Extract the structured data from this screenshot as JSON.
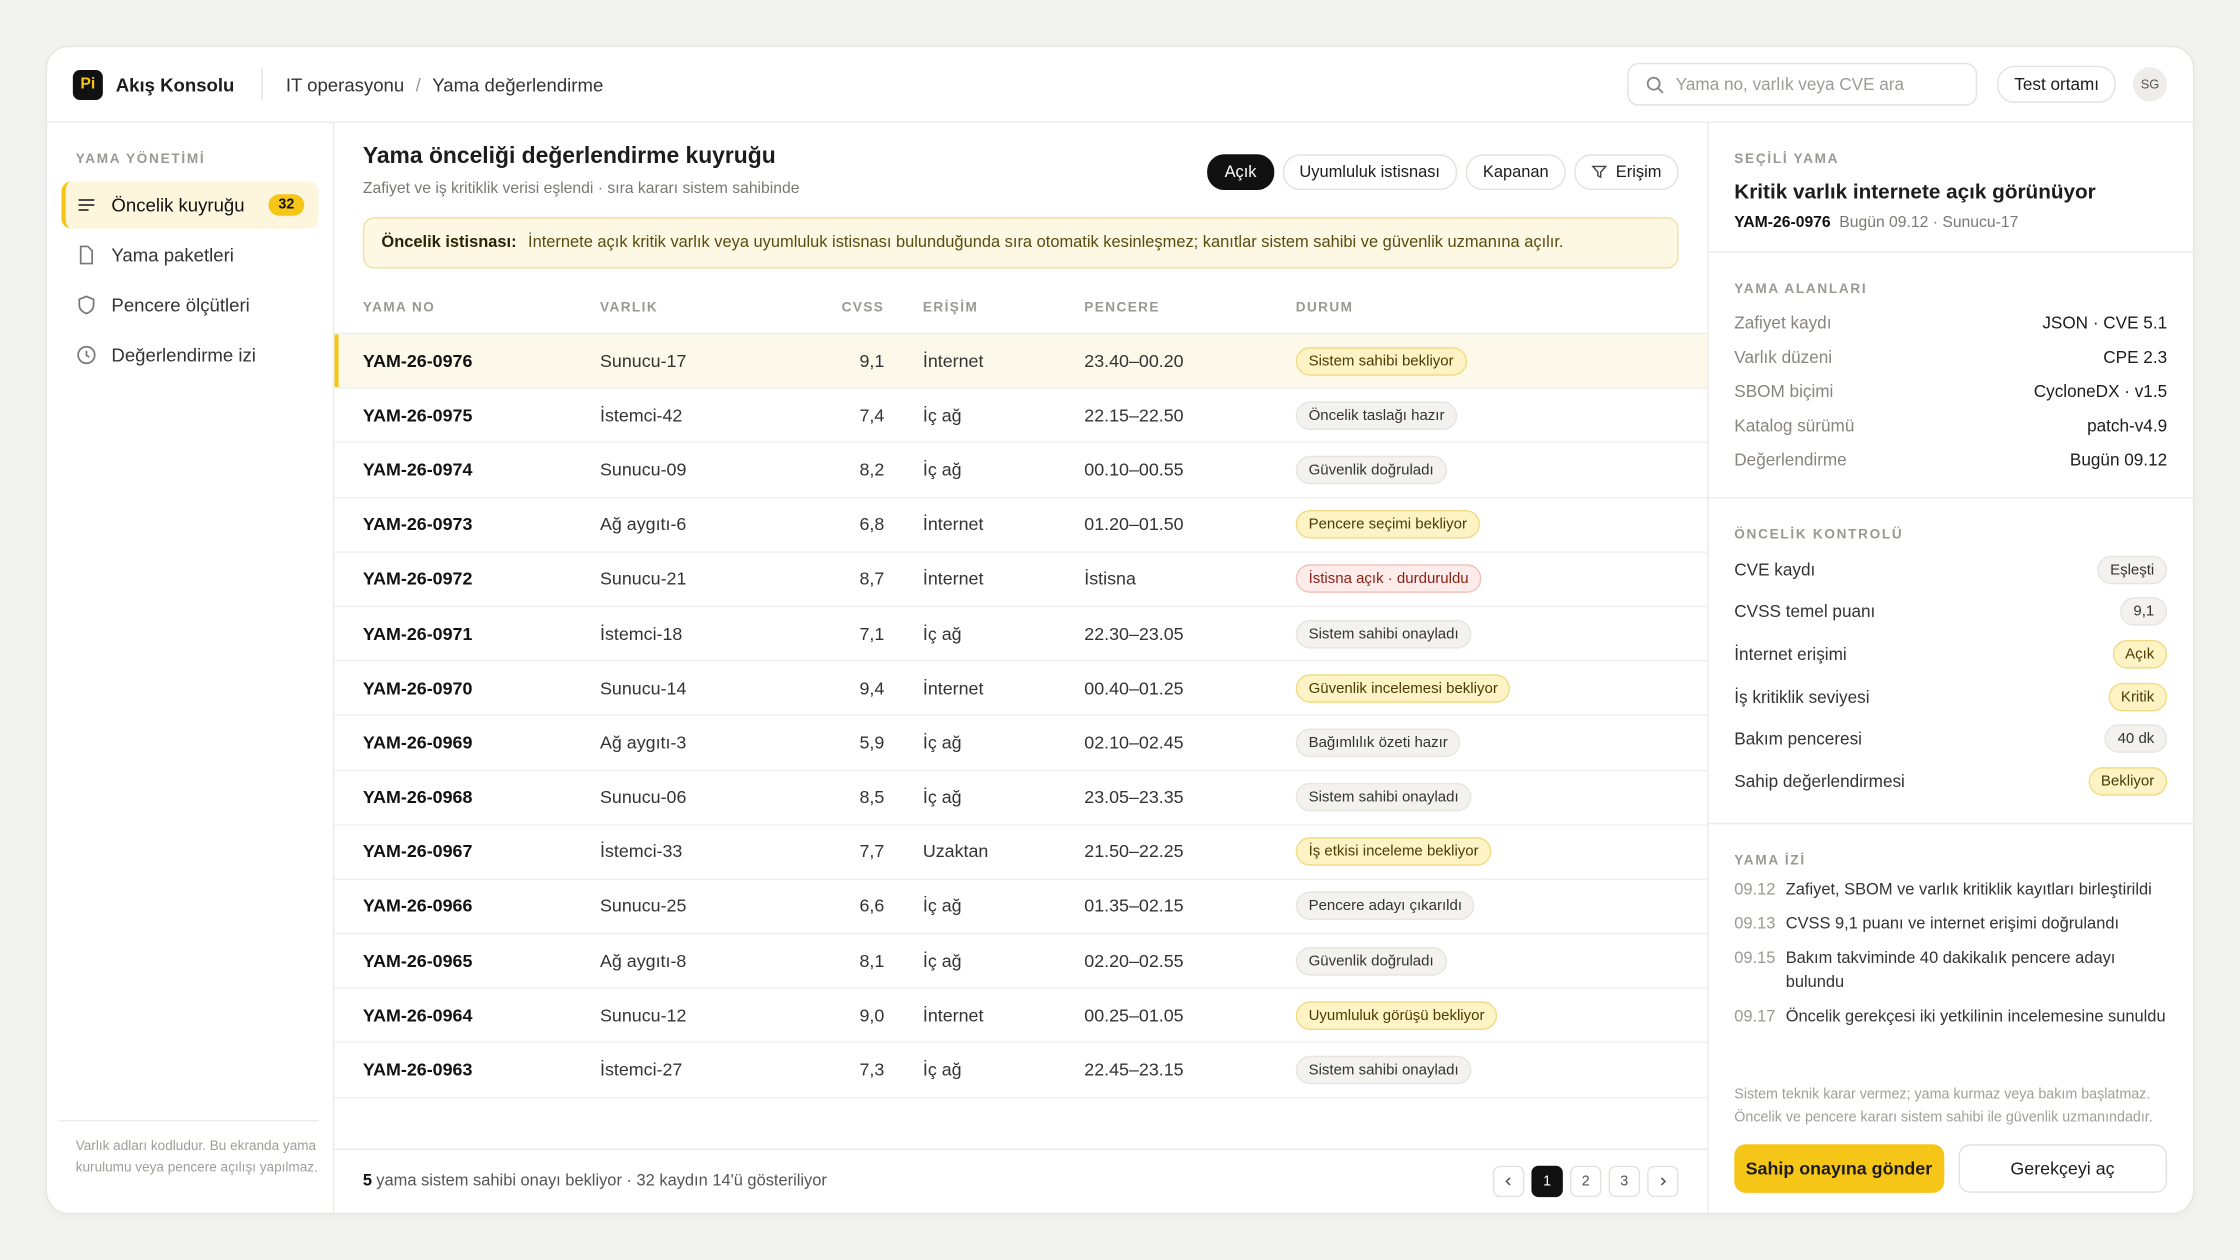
{
  "app": {
    "logo": "Pi",
    "name": "Akış Konsolu"
  },
  "breadcrumb": {
    "items": [
      "IT operasyonu",
      "Yama değerlendirme"
    ],
    "separator": "/"
  },
  "search_placeholder": "Yama no, varlık veya CVE ara",
  "env_button": "Test ortamı",
  "avatar": "SG",
  "sidebar": {
    "section": "YAMA YÖNETİMİ",
    "items": [
      {
        "label": "Öncelik kuyruğu",
        "badge": "32",
        "active": true
      },
      {
        "label": "Yama paketleri"
      },
      {
        "label": "Pencere ölçütleri"
      },
      {
        "label": "Değerlendirme izi"
      }
    ],
    "note": "Varlık adları kodludur. Bu ekranda yama kurulumu veya pencere açılışı yapılmaz."
  },
  "queue": {
    "title": "Yama önceliği değerlendirme kuyruğu",
    "subtitle": "Zafiyet ve iş kritiklik verisi eşlendi · sıra kararı sistem sahibinde",
    "filters": [
      {
        "label": "Açık",
        "active": true
      },
      {
        "label": "Uyumluluk istisnası"
      },
      {
        "label": "Kapanan"
      },
      {
        "label": "Erişim",
        "icon": "filter"
      }
    ],
    "notice": {
      "label": "Öncelik istisnası:",
      "text": "İnternete açık kritik varlık veya uyumluluk istisnası bulunduğunda sıra otomatik kesinleşmez; kanıtlar sistem sahibi ve güvenlik uzmanına açılır."
    },
    "columns": [
      "YAMA NO",
      "VARLIK",
      "CVSS",
      "ERİŞİM",
      "PENCERE",
      "DURUM"
    ],
    "rows": [
      {
        "id": "YAM-26-0976",
        "asset": "Sunucu-17",
        "cvss": "9,1",
        "access": "İnternet",
        "window": "23.40–00.20",
        "status": "Sistem sahibi bekliyor",
        "tone": "warning",
        "selected": true
      },
      {
        "id": "YAM-26-0975",
        "asset": "İstemci-42",
        "cvss": "7,4",
        "access": "İç ağ",
        "window": "22.15–22.50",
        "status": "Öncelik taslağı hazır",
        "tone": "neutral"
      },
      {
        "id": "YAM-26-0974",
        "asset": "Sunucu-09",
        "cvss": "8,2",
        "access": "İç ağ",
        "window": "00.10–00.55",
        "status": "Güvenlik doğruladı",
        "tone": "neutral"
      },
      {
        "id": "YAM-26-0973",
        "asset": "Ağ aygıtı-6",
        "cvss": "6,8",
        "access": "İnternet",
        "window": "01.20–01.50",
        "status": "Pencere seçimi bekliyor",
        "tone": "warning"
      },
      {
        "id": "YAM-26-0972",
        "asset": "Sunucu-21",
        "cvss": "8,7",
        "access": "İnternet",
        "window": "İstisna",
        "status": "İstisna açık · durduruldu",
        "tone": "danger"
      },
      {
        "id": "YAM-26-0971",
        "asset": "İstemci-18",
        "cvss": "7,1",
        "access": "İç ağ",
        "window": "22.30–23.05",
        "status": "Sistem sahibi onayladı",
        "tone": "neutral"
      },
      {
        "id": "YAM-26-0970",
        "asset": "Sunucu-14",
        "cvss": "9,4",
        "access": "İnternet",
        "window": "00.40–01.25",
        "status": "Güvenlik incelemesi bekliyor",
        "tone": "warning"
      },
      {
        "id": "YAM-26-0969",
        "asset": "Ağ aygıtı-3",
        "cvss": "5,9",
        "access": "İç ağ",
        "window": "02.10–02.45",
        "status": "Bağımlılık özeti hazır",
        "tone": "neutral"
      },
      {
        "id": "YAM-26-0968",
        "asset": "Sunucu-06",
        "cvss": "8,5",
        "access": "İç ağ",
        "window": "23.05–23.35",
        "status": "Sistem sahibi onayladı",
        "tone": "neutral"
      },
      {
        "id": "YAM-26-0967",
        "asset": "İstemci-33",
        "cvss": "7,7",
        "access": "Uzaktan",
        "window": "21.50–22.25",
        "status": "İş etkisi inceleme bekliyor",
        "tone": "warning"
      },
      {
        "id": "YAM-26-0966",
        "asset": "Sunucu-25",
        "cvss": "6,6",
        "access": "İç ağ",
        "window": "01.35–02.15",
        "status": "Pencere adayı çıkarıldı",
        "tone": "neutral"
      },
      {
        "id": "YAM-26-0965",
        "asset": "Ağ aygıtı-8",
        "cvss": "8,1",
        "access": "İç ağ",
        "window": "02.20–02.55",
        "status": "Güvenlik doğruladı",
        "tone": "neutral"
      },
      {
        "id": "YAM-26-0964",
        "asset": "Sunucu-12",
        "cvss": "9,0",
        "access": "İnternet",
        "window": "00.25–01.05",
        "status": "Uyumluluk görüşü bekliyor",
        "tone": "warning"
      },
      {
        "id": "YAM-26-0963",
        "asset": "İstemci-27",
        "cvss": "7,3",
        "access": "İç ağ",
        "window": "22.45–23.15",
        "status": "Sistem sahibi onayladı",
        "tone": "neutral"
      }
    ],
    "footer": {
      "count": "5",
      "text": "yama sistem sahibi onayı bekliyor · 32 kaydın 14'ü gösteriliyor"
    },
    "pages": [
      {
        "label": "1",
        "active": true
      },
      {
        "label": "2"
      },
      {
        "label": "3"
      }
    ]
  },
  "detail": {
    "section": "SEÇİLİ YAMA",
    "title": "Kritik varlık internete açık görünüyor",
    "id": "YAM-26-0976",
    "meta": "Bugün 09.12 · Sunucu-17",
    "fields": {
      "section": "YAMA ALANLARI",
      "items": [
        {
          "label": "Zafiyet kaydı",
          "value": "JSON · CVE 5.1"
        },
        {
          "label": "Varlık düzeni",
          "value": "CPE 2.3"
        },
        {
          "label": "SBOM biçimi",
          "value": "CycloneDX · v1.5"
        },
        {
          "label": "Katalog sürümü",
          "value": "patch-v4.9"
        },
        {
          "label": "Değerlendirme",
          "value": "Bugün 09.12"
        }
      ]
    },
    "checks": {
      "section": "ÖNCELİK KONTROLÜ",
      "items": [
        {
          "label": "CVE kaydı",
          "value": "Eşleşti",
          "tone": "neutral"
        },
        {
          "label": "CVSS temel puanı",
          "value": "9,1",
          "tone": "neutral"
        },
        {
          "label": "İnternet erişimi",
          "value": "Açık",
          "tone": "warning"
        },
        {
          "label": "İş kritiklik seviyesi",
          "value": "Kritik",
          "tone": "warning"
        },
        {
          "label": "Bakım penceresi",
          "value": "40 dk",
          "tone": "neutral"
        },
        {
          "label": "Sahip değerlendirmesi",
          "value": "Bekliyor",
          "tone": "warning"
        }
      ]
    },
    "history": {
      "section": "YAMA İZİ",
      "items": [
        {
          "time": "09.12",
          "text": "Zafiyet, SBOM ve varlık kritiklik kayıtları birleştirildi"
        },
        {
          "time": "09.13",
          "text": "CVSS 9,1 puanı ve internet erişimi doğrulandı"
        },
        {
          "time": "09.15",
          "text": "Bakım takviminde 40 dakikalık pencere adayı bulundu"
        },
        {
          "time": "09.17",
          "text": "Öncelik gerekçesi iki yetkilinin incelemesine sunuldu"
        }
      ]
    },
    "disclaimer": "Sistem teknik karar vermez; yama kurmaz veya bakım başlatmaz. Öncelik ve pencere kararı sistem sahibi ile güvenlik uzmanındadır.",
    "actions": {
      "primary": "Sahip onayına gönder",
      "secondary": "Gerekçeyi aç"
    }
  }
}
